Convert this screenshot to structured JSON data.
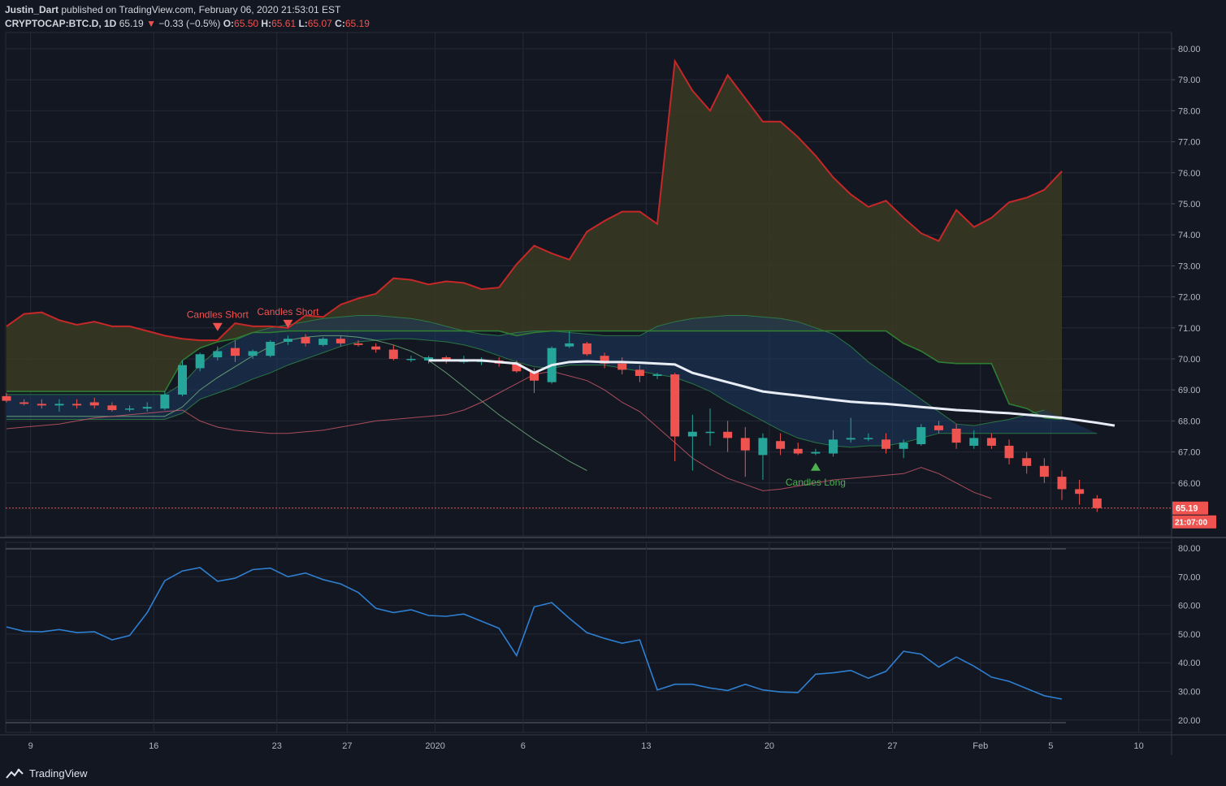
{
  "header": {
    "publisher": "Justin_Dart",
    "published_text": "published on TradingView.com, February 06, 2020 21:53:01 EST",
    "symbol": "CRYPTOCAP:BTC.D, 1D",
    "last": "65.19",
    "change": "−0.33 (−0.5%)",
    "o_label": "O:",
    "o_value": "65.50",
    "h_label": "H:",
    "h_value": "65.61",
    "l_label": "L:",
    "l_value": "65.07",
    "c_label": "C:",
    "c_value": "65.19"
  },
  "footer": {
    "brand": "TradingView"
  },
  "colors": {
    "background": "#131722",
    "up": "#26a69a",
    "down": "#ef5350",
    "cloud_fill": "#3b3a22",
    "cloud_top": "#c62828",
    "cloud_bottom": "#2e7d32",
    "channel_fill": "#1e3a5f",
    "ma": "#e8ecf5",
    "rsi": "#2f7fd1"
  },
  "chart_data": [
    {
      "type": "candlestick",
      "name": "price",
      "ylim": [
        64.5,
        80.3
      ],
      "yticks": [
        "80.00",
        "79.00",
        "78.00",
        "77.00",
        "76.00",
        "75.00",
        "74.00",
        "73.00",
        "72.00",
        "71.00",
        "70.00",
        "69.00",
        "68.00",
        "67.00",
        "66.00"
      ],
      "last_price_label": "65.19",
      "countdown_label": "21:07:00",
      "candles": [
        [
          68.8,
          68.9,
          68.6,
          68.65
        ],
        [
          68.6,
          68.7,
          68.5,
          68.55
        ],
        [
          68.55,
          68.7,
          68.4,
          68.5
        ],
        [
          68.5,
          68.7,
          68.3,
          68.55
        ],
        [
          68.55,
          68.7,
          68.4,
          68.5
        ],
        [
          68.6,
          68.75,
          68.4,
          68.5
        ],
        [
          68.5,
          68.6,
          68.3,
          68.35
        ],
        [
          68.4,
          68.5,
          68.3,
          68.4
        ],
        [
          68.4,
          68.6,
          68.3,
          68.45
        ],
        [
          68.4,
          68.95,
          68.35,
          68.85
        ],
        [
          68.85,
          69.95,
          68.8,
          69.8
        ],
        [
          69.7,
          70.2,
          69.6,
          70.15
        ],
        [
          70.05,
          70.4,
          69.95,
          70.25
        ],
        [
          70.35,
          70.6,
          69.9,
          70.1
        ],
        [
          70.1,
          70.3,
          70.0,
          70.25
        ],
        [
          70.1,
          70.6,
          70.05,
          70.55
        ],
        [
          70.55,
          70.75,
          70.45,
          70.65
        ],
        [
          70.7,
          70.8,
          70.4,
          70.5
        ],
        [
          70.45,
          70.7,
          70.4,
          70.65
        ],
        [
          70.65,
          70.75,
          70.4,
          70.5
        ],
        [
          70.5,
          70.6,
          70.4,
          70.45
        ],
        [
          70.4,
          70.5,
          70.2,
          70.3
        ],
        [
          70.3,
          70.45,
          69.95,
          70.0
        ],
        [
          70.0,
          70.1,
          69.9,
          70.0
        ],
        [
          69.95,
          70.1,
          69.85,
          70.05
        ],
        [
          70.05,
          70.1,
          69.85,
          69.95
        ],
        [
          69.9,
          70.1,
          69.85,
          69.95
        ],
        [
          69.9,
          70.05,
          69.8,
          69.95
        ],
        [
          69.95,
          70.05,
          69.75,
          69.85
        ],
        [
          69.85,
          69.95,
          69.55,
          69.6
        ],
        [
          69.6,
          69.7,
          68.9,
          69.3
        ],
        [
          69.25,
          70.4,
          69.2,
          70.35
        ],
        [
          70.4,
          70.9,
          70.35,
          70.5
        ],
        [
          70.5,
          70.55,
          70.1,
          70.15
        ],
        [
          70.1,
          70.2,
          69.7,
          69.85
        ],
        [
          69.85,
          70.05,
          69.5,
          69.65
        ],
        [
          69.65,
          69.8,
          69.25,
          69.45
        ],
        [
          69.45,
          69.55,
          69.35,
          69.5
        ],
        [
          69.5,
          69.55,
          66.7,
          67.5
        ],
        [
          67.5,
          68.2,
          66.4,
          67.65
        ],
        [
          67.65,
          68.4,
          67.2,
          67.65
        ],
        [
          67.65,
          68.0,
          67.0,
          67.45
        ],
        [
          67.45,
          67.8,
          66.2,
          67.05
        ],
        [
          66.9,
          67.6,
          66.1,
          67.45
        ],
        [
          67.35,
          67.6,
          66.9,
          67.1
        ],
        [
          67.1,
          67.3,
          66.9,
          66.95
        ],
        [
          66.95,
          67.1,
          66.9,
          67.0
        ],
        [
          66.95,
          67.7,
          66.85,
          67.4
        ],
        [
          67.4,
          68.1,
          67.3,
          67.45
        ],
        [
          67.45,
          67.6,
          67.35,
          67.45
        ],
        [
          67.4,
          67.6,
          66.95,
          67.1
        ],
        [
          67.1,
          67.4,
          66.8,
          67.3
        ],
        [
          67.25,
          67.9,
          67.2,
          67.8
        ],
        [
          67.85,
          68.0,
          67.6,
          67.7
        ],
        [
          67.75,
          67.9,
          67.1,
          67.3
        ],
        [
          67.2,
          67.7,
          67.1,
          67.45
        ],
        [
          67.45,
          67.6,
          67.1,
          67.2
        ],
        [
          67.2,
          67.4,
          66.6,
          66.8
        ],
        [
          66.8,
          67.0,
          66.3,
          66.55
        ],
        [
          66.55,
          66.8,
          66.0,
          66.2
        ],
        [
          66.2,
          66.4,
          65.45,
          65.8
        ],
        [
          65.8,
          66.1,
          65.3,
          65.65
        ],
        [
          65.5,
          65.61,
          65.07,
          65.19
        ]
      ],
      "cloud_top": [
        71.05,
        71.45,
        71.5,
        71.25,
        71.1,
        71.2,
        71.05,
        71.05,
        70.9,
        70.75,
        70.65,
        70.6,
        70.6,
        71.15,
        71.05,
        71.05,
        71.0,
        71.4,
        71.35,
        71.75,
        71.95,
        72.1,
        72.6,
        72.55,
        72.4,
        72.5,
        72.45,
        72.25,
        72.3,
        73.05,
        73.65,
        73.4,
        73.2,
        74.1,
        74.45,
        74.75,
        74.75,
        74.35,
        79.6,
        78.65,
        78.0,
        79.15,
        78.4,
        77.65,
        77.65,
        77.15,
        76.55,
        75.85,
        75.3,
        74.9,
        75.1,
        74.55,
        74.05,
        73.8,
        74.8,
        74.25,
        74.55,
        75.05,
        75.2,
        75.45,
        76.05
      ],
      "cloud_bottom": [
        68.95,
        68.95,
        68.95,
        68.95,
        68.95,
        68.95,
        68.95,
        68.95,
        68.95,
        68.95,
        69.95,
        70.35,
        70.55,
        70.65,
        70.85,
        70.85,
        70.9,
        70.9,
        70.9,
        70.9,
        70.9,
        70.9,
        70.9,
        70.9,
        70.9,
        70.9,
        70.9,
        70.9,
        70.9,
        70.75,
        70.85,
        70.9,
        70.9,
        70.9,
        70.9,
        70.9,
        70.9,
        70.9,
        70.9,
        70.9,
        70.9,
        70.9,
        70.9,
        70.9,
        70.9,
        70.9,
        70.9,
        70.9,
        70.9,
        70.9,
        70.9,
        70.5,
        70.25,
        69.9,
        69.85,
        69.85,
        69.85,
        68.55,
        68.4,
        68.1,
        68.05
      ],
      "band_upper": [
        68.85,
        68.85,
        68.85,
        68.85,
        68.85,
        68.85,
        68.85,
        68.85,
        68.85,
        68.85,
        69.2,
        69.8,
        70.3,
        70.6,
        70.85,
        71.0,
        71.1,
        71.2,
        71.3,
        71.35,
        71.4,
        71.4,
        71.35,
        71.3,
        71.2,
        71.05,
        70.9,
        70.8,
        70.75,
        70.85,
        70.9,
        70.9,
        70.85,
        70.8,
        70.75,
        70.75,
        70.75,
        71.05,
        71.2,
        71.3,
        71.35,
        71.4,
        71.4,
        71.35,
        71.3,
        71.2,
        71.0,
        70.8,
        70.4,
        69.9,
        69.5,
        69.1,
        68.7,
        68.3,
        67.9,
        67.85,
        67.95,
        68.05,
        68.2,
        68.35
      ],
      "band_lower": [
        68.05,
        68.05,
        68.05,
        68.05,
        68.05,
        68.05,
        68.05,
        68.05,
        68.05,
        68.05,
        68.25,
        68.7,
        68.9,
        69.1,
        69.35,
        69.55,
        69.8,
        70.0,
        70.2,
        70.4,
        70.55,
        70.6,
        70.65,
        70.65,
        70.6,
        70.55,
        70.45,
        70.3,
        70.1,
        69.9,
        69.75,
        69.7,
        69.8,
        69.8,
        69.8,
        69.7,
        69.6,
        69.5,
        69.4,
        69.2,
        68.95,
        68.6,
        68.3,
        68.0,
        67.7,
        67.45,
        67.3,
        67.2,
        67.15,
        67.2,
        67.2,
        67.3,
        67.45,
        67.6,
        67.6,
        67.6,
        67.6,
        67.6,
        67.6,
        67.6,
        67.6,
        67.6,
        67.6
      ],
      "basis": [
        68.4,
        68.4,
        68.4,
        68.4,
        68.4,
        68.4,
        68.4,
        68.4,
        68.4,
        68.4,
        68.85,
        69.3,
        69.65,
        69.9,
        70.1,
        70.25,
        70.35,
        70.45,
        70.5,
        70.5,
        70.45,
        70.35,
        70.25,
        70.05,
        69.9,
        69.95,
        69.95,
        69.95,
        69.85,
        69.8,
        69.85,
        69.85,
        69.75,
        69.5,
        69.45,
        69.4,
        69.2,
        69.05,
        68.9,
        68.75,
        68.65,
        68.55,
        68.5,
        68.4,
        68.35,
        68.3,
        68.2,
        68.1,
        68.05,
        68.0,
        67.95,
        67.85
      ],
      "env_upper": [
        68.15,
        68.15,
        68.15,
        68.15,
        68.15,
        68.15,
        68.15,
        68.15,
        68.15,
        68.15,
        68.45,
        69.0,
        69.4,
        69.75,
        70.1,
        70.4,
        70.6,
        70.7,
        70.75,
        70.75,
        70.7,
        70.6,
        70.45,
        70.25,
        69.95,
        69.55,
        69.1,
        68.65,
        68.2,
        67.8,
        67.4,
        67.05,
        66.7,
        66.4
      ],
      "env_lower": [
        67.75,
        67.8,
        67.85,
        67.9,
        68.0,
        68.1,
        68.15,
        68.2,
        68.25,
        68.3,
        68.35,
        68.0,
        67.8,
        67.7,
        67.65,
        67.6,
        67.6,
        67.65,
        67.7,
        67.8,
        67.9,
        68.0,
        68.05,
        68.1,
        68.15,
        68.2,
        68.35,
        68.6,
        68.9,
        69.2,
        69.5,
        69.6,
        69.45,
        69.3,
        69.0,
        68.6,
        68.3,
        67.8,
        67.3,
        66.8,
        66.45,
        66.15,
        65.95,
        65.75,
        65.8,
        65.9,
        66.0,
        66.1,
        66.15,
        66.2,
        66.25,
        66.3,
        66.5,
        66.3,
        66.0,
        65.7,
        65.5
      ],
      "ma": [
        69.95,
        69.95,
        69.95,
        69.95,
        69.9,
        69.85,
        69.55,
        69.8,
        69.9,
        69.92,
        69.9,
        69.9,
        69.88,
        69.85,
        69.82,
        69.55,
        69.4,
        69.25,
        69.1,
        68.95,
        68.88,
        68.82,
        68.75,
        68.68,
        68.62,
        68.58,
        68.55,
        68.5,
        68.45,
        68.4,
        68.35,
        68.32,
        68.28,
        68.25,
        68.2,
        68.15,
        68.1,
        68.02,
        67.94,
        67.85
      ],
      "signals": [
        {
          "label": "Candles Short",
          "type": "short"
        },
        {
          "label": "Candles Short",
          "type": "short"
        },
        {
          "label": "Candles Long",
          "type": "long"
        }
      ]
    },
    {
      "type": "line",
      "name": "oscillator",
      "ylim": [
        17,
        82
      ],
      "yticks": [
        "80.00",
        "70.00",
        "60.00",
        "50.00",
        "40.00",
        "30.00",
        "20.00"
      ],
      "values": [
        52.5,
        51,
        50.8,
        51.6,
        50.5,
        50.8,
        48,
        49.5,
        57.5,
        68.6,
        72,
        73.2,
        68.4,
        69.5,
        72.5,
        73,
        70,
        71.3,
        69,
        67.5,
        64.5,
        59,
        57.5,
        58.5,
        56.5,
        56.2,
        57,
        54.5,
        52,
        42.5,
        59.5,
        61,
        55.5,
        50.5,
        48.5,
        46.8,
        48,
        30.5,
        32.5,
        32.5,
        31.2,
        30.3,
        32.5,
        30.5,
        29.8,
        29.6,
        36,
        36.5,
        37.3,
        34.6,
        37,
        44,
        43,
        38.5,
        42,
        38.8,
        35,
        33.5,
        31,
        28.5,
        27.3
      ]
    }
  ],
  "x_axis": {
    "labels": [
      "9",
      "16",
      "23",
      "27",
      "2020",
      "6",
      "13",
      "20",
      "27",
      "Feb",
      "5",
      "10"
    ]
  }
}
